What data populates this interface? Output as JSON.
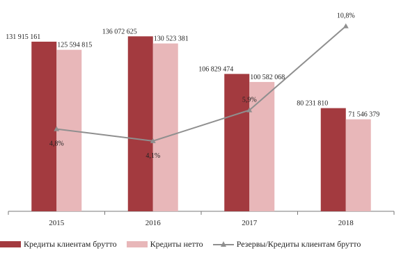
{
  "chart_data": {
    "type": "bar",
    "categories": [
      "2015",
      "2016",
      "2017",
      "2018"
    ],
    "series": [
      {
        "name": "Кредиты клиентам брутто",
        "kind": "bar",
        "color": "#a33a3f",
        "values": [
          131915161,
          136072625,
          106829474,
          80231810
        ],
        "labels": [
          "131 915 161",
          "136 072 625",
          "106 829 474",
          "80 231 810"
        ]
      },
      {
        "name": "Кредиты нетто",
        "kind": "bar",
        "color": "#e8b7b9",
        "values": [
          125594815,
          130523381,
          100582068,
          71546379
        ],
        "labels": [
          "125 594 815",
          "130 523 381",
          "100 582 068",
          "71 546 379"
        ]
      },
      {
        "name": "Резервы/Кредиты клиентам брутто",
        "kind": "line",
        "color": "#8f8f8f",
        "axis": "secondary",
        "values": [
          4.8,
          4.1,
          5.9,
          10.8
        ],
        "labels": [
          "4,8%",
          "4,1%",
          "5,9%",
          "10,8%"
        ]
      }
    ],
    "ylim": [
      0,
      160000000
    ],
    "y2lim": [
      0,
      12
    ],
    "grid": false,
    "legend_position": "bottom"
  }
}
